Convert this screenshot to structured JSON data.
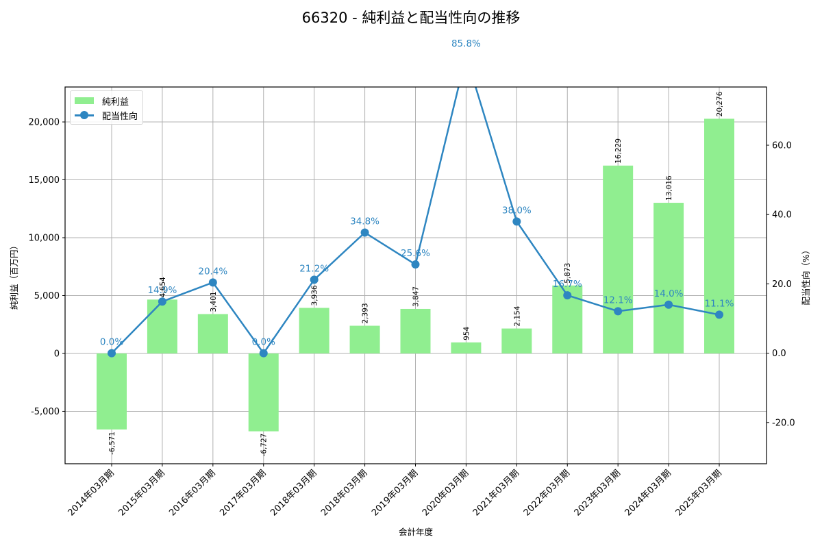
{
  "title": "66320 - 純利益と配当性向の推移",
  "legend": {
    "bar_label": "純利益",
    "line_label": "配当性向"
  },
  "axes": {
    "xlabel": "会計年度",
    "ylabel_left": "純利益（百万円）",
    "ylabel_right": "配当性向（%）",
    "left_ticks": [
      "-5,000",
      "0",
      "5,000",
      "10,000",
      "15,000",
      "20,000"
    ],
    "right_ticks": [
      "-20.0",
      "0.0",
      "20.0",
      "40.0",
      "60.0"
    ]
  },
  "colors": {
    "bar": "#90ee90",
    "line": "#2e86c1",
    "grid": "#b0b0b0"
  },
  "chart_data": {
    "type": "bar+line",
    "title": "66320 - 純利益と配当性向の推移",
    "xlabel": "会計年度",
    "ylabel": "純利益（百万円）",
    "y2label": "配当性向（%）",
    "categories": [
      "2014年03月期",
      "2015年03月期",
      "2016年03月期",
      "2017年03月期",
      "2018年03月期",
      "2018年03月期",
      "2019年03月期",
      "2020年03月期",
      "2021年03月期",
      "2022年03月期",
      "2023年03月期",
      "2024年03月期",
      "2025年03月期"
    ],
    "series": [
      {
        "name": "純利益",
        "type": "bar",
        "axis": "left",
        "values": [
          -6571,
          4654,
          3401,
          -6727,
          3936,
          2393,
          3847,
          954,
          2154,
          5873,
          16229,
          13016,
          20276
        ],
        "labels": [
          "-6,571",
          "4,654",
          "3,401",
          "-6,727",
          "3,936",
          "2,393",
          "3,847",
          "954",
          "2,154",
          "5,873",
          "16,229",
          "13,016",
          "20,276"
        ]
      },
      {
        "name": "配当性向",
        "type": "line",
        "axis": "right",
        "values": [
          0.0,
          14.9,
          20.4,
          0.0,
          21.2,
          34.8,
          25.6,
          85.8,
          38.0,
          16.7,
          12.1,
          14.0,
          11.1
        ],
        "labels": [
          "0.0%",
          "14.9%",
          "20.4%",
          "0.0%",
          "21.2%",
          "34.8%",
          "25.6%",
          "85.8%",
          "38.0%",
          "16.7%",
          "12.1%",
          "14.0%",
          "11.1%"
        ]
      }
    ],
    "ylim": [
      -9530,
      23020
    ],
    "y2lim": [
      -31.9,
      76.8
    ],
    "grid": true,
    "legend_position": "upper left"
  }
}
